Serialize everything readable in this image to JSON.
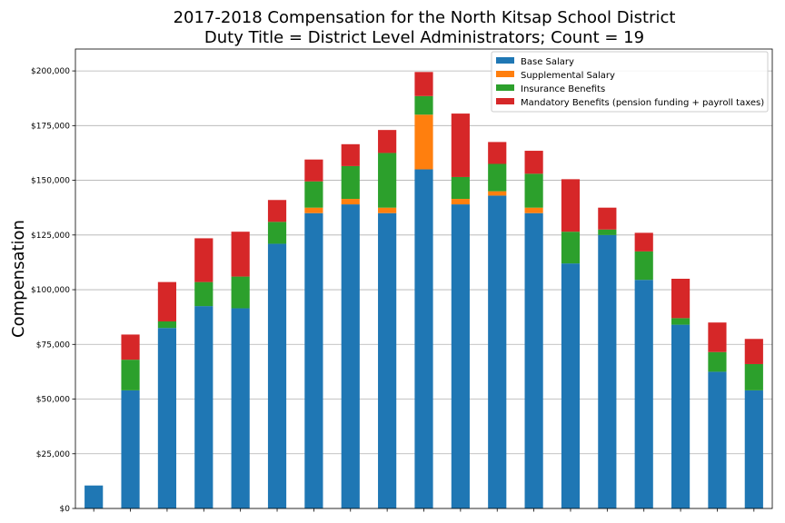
{
  "chart_data": {
    "type": "bar",
    "stacked": true,
    "title": "2017-2018 Compensation for the North Kitsap School District",
    "subtitle": "Duty Title = District Level Administrators; Count = 19",
    "xlabel": "",
    "ylabel": "Compensation",
    "ylim": [
      0,
      210000
    ],
    "yticks": [
      0,
      25000,
      50000,
      75000,
      100000,
      125000,
      150000,
      175000,
      200000
    ],
    "ytick_labels": [
      "$0",
      "$25,000",
      "$50,000",
      "$75,000",
      "$100,000",
      "$125,000",
      "$150,000",
      "$175,000",
      "$200,000"
    ],
    "grid": "horizontal",
    "legend_position": "top-right",
    "categories": [
      "",
      "",
      "",
      "",
      "",
      "",
      "",
      "",
      "",
      "",
      "",
      "",
      "",
      "",
      "",
      "",
      "",
      "",
      ""
    ],
    "series": [
      {
        "name": "Base Salary",
        "color": "#1f77b4",
        "values": [
          10500,
          54000,
          82500,
          92500,
          91500,
          121000,
          135000,
          139000,
          135000,
          155000,
          139000,
          143000,
          135000,
          112000,
          125000,
          104500,
          84000,
          62500,
          54000
        ]
      },
      {
        "name": "Supplemental Salary",
        "color": "#ff7f0e",
        "values": [
          0,
          0,
          0,
          0,
          0,
          0,
          2500,
          2500,
          2500,
          25000,
          2500,
          2000,
          2500,
          0,
          0,
          0,
          0,
          0,
          0
        ]
      },
      {
        "name": "Insurance Benefits",
        "color": "#2ca02c",
        "values": [
          0,
          14000,
          3000,
          11000,
          14500,
          10000,
          12000,
          15000,
          25000,
          8500,
          10000,
          12500,
          15500,
          14500,
          2500,
          13000,
          3000,
          9000,
          12000
        ]
      },
      {
        "name": "Mandatory Benefits (pension funding + payroll taxes)",
        "color": "#d62728",
        "values": [
          0,
          11500,
          18000,
          20000,
          20500,
          10000,
          10000,
          10000,
          10500,
          11000,
          29000,
          10000,
          10500,
          24000,
          10000,
          8500,
          18000,
          13500,
          11500
        ]
      }
    ]
  }
}
